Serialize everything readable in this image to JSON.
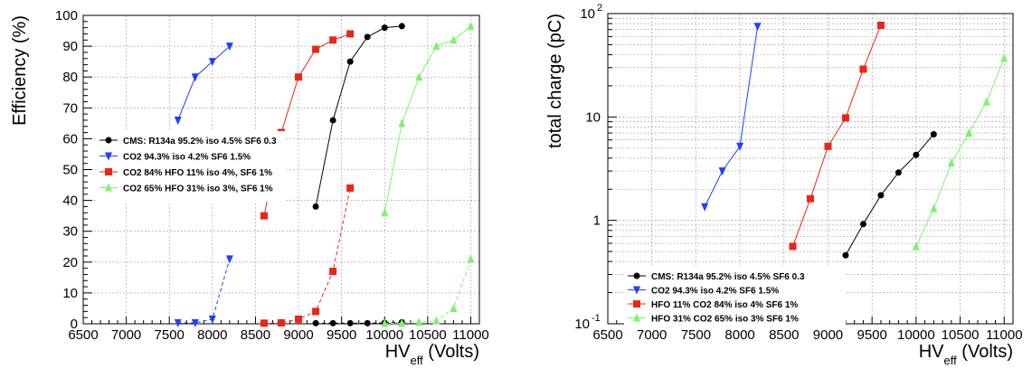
{
  "chart_data": [
    {
      "type": "line",
      "xlabel": "HV",
      "xlabel_sub": "eff",
      "xlabel_unit": "(Volts)",
      "ylabel": "Efficiency (%)",
      "xlim": [
        6500,
        11100
      ],
      "ylim": [
        0,
        100
      ],
      "log_y": false,
      "grid": true,
      "legend_position": "middle-left",
      "x_ticks": [
        6500,
        7000,
        7500,
        8000,
        8500,
        9000,
        9500,
        10000,
        10500,
        11000
      ],
      "y_ticks": [
        0,
        10,
        20,
        30,
        40,
        50,
        60,
        70,
        80,
        90,
        100
      ],
      "x_tick_labels": [
        "6500",
        "7000",
        "7500",
        "8000",
        "8500",
        "9000",
        "9500",
        "10000",
        "10500",
        "11000"
      ],
      "y_tick_labels": [
        "0",
        "10",
        "20",
        "30",
        "40",
        "50",
        "60",
        "70",
        "80",
        "90",
        "100"
      ],
      "series": [
        {
          "name": "CMS: R134a 95.2% iso 4.5% SF6 0.3",
          "color": "#000000",
          "marker": "circle",
          "dashed": false,
          "x": [
            9200,
            9400,
            9600,
            9800,
            10000,
            10200
          ],
          "y": [
            38,
            66,
            85,
            93,
            96,
            96.5
          ]
        },
        {
          "name": "CO2 94.3% iso 4.2% SF6 1.5%",
          "color": "#1f3fff",
          "marker": "triangle-down",
          "dashed": false,
          "x": [
            7600,
            7800,
            8000,
            8200
          ],
          "y": [
            66,
            80,
            85,
            90
          ]
        },
        {
          "name": "CO2 84% HFO 11% iso 4%, SF6 1%",
          "color": "#e8261a",
          "marker": "square",
          "dashed": false,
          "x": [
            8600,
            8800,
            9000,
            9200,
            9400,
            9600
          ],
          "y": [
            35,
            62,
            80,
            89,
            92,
            94
          ]
        },
        {
          "name": "CO2 65% HFO 31% iso 3%, SF6 1%",
          "color": "#80f070",
          "marker": "triangle-up",
          "dashed": false,
          "x": [
            10000,
            10200,
            10400,
            10600,
            10800,
            11000
          ],
          "y": [
            36,
            65,
            80,
            90,
            92,
            96.5
          ]
        },
        {
          "name": "",
          "color": "#000000",
          "marker": "circle",
          "dashed": true,
          "x": [
            9200,
            9400,
            9600,
            9800,
            10000,
            10200
          ],
          "y": [
            0.2,
            0.2,
            0.2,
            0.2,
            0.3,
            0.5
          ]
        },
        {
          "name": "",
          "color": "#1f3fff",
          "marker": "triangle-down",
          "dashed": true,
          "x": [
            7600,
            7800,
            8000,
            8200
          ],
          "y": [
            0.3,
            0.3,
            1.5,
            21
          ]
        },
        {
          "name": "",
          "color": "#e8261a",
          "marker": "square",
          "dashed": true,
          "x": [
            8600,
            8800,
            9000,
            9200,
            9400,
            9600
          ],
          "y": [
            0.2,
            0.3,
            1.5,
            4,
            17,
            44
          ]
        },
        {
          "name": "",
          "color": "#80f070",
          "marker": "triangle-up",
          "dashed": true,
          "x": [
            10000,
            10200,
            10400,
            10600,
            10800,
            11000
          ],
          "y": [
            0.1,
            0.2,
            0.5,
            1,
            5,
            21
          ]
        }
      ]
    },
    {
      "type": "line",
      "xlabel": "HV",
      "xlabel_sub": "eff",
      "xlabel_unit": "(Volts)",
      "ylabel": "total charge (pC)",
      "xlim": [
        6500,
        11100
      ],
      "ylim": [
        0.1,
        100
      ],
      "log_y": true,
      "grid": true,
      "legend_position": "bottom-left",
      "x_ticks": [
        6500,
        7000,
        7500,
        8000,
        8500,
        9000,
        9500,
        10000,
        10500,
        11000
      ],
      "x_tick_labels": [
        "6500",
        "7000",
        "7500",
        "8000",
        "8500",
        "9000",
        "9500",
        "10000",
        "10500",
        "11000"
      ],
      "y_major_ticks": [
        0.1,
        1,
        10,
        100
      ],
      "y_major_labels": [
        {
          "base": "10",
          "exp": "-1"
        },
        {
          "base": "1",
          "exp": ""
        },
        {
          "base": "10",
          "exp": ""
        },
        {
          "base": "10",
          "exp": "2"
        }
      ],
      "series": [
        {
          "name": "CMS: R134a 95.2% iso 4.5% SF6 0.3",
          "color": "#000000",
          "marker": "circle",
          "dashed": false,
          "x": [
            9200,
            9400,
            9600,
            9800,
            10000,
            10200
          ],
          "y": [
            0.46,
            0.92,
            1.75,
            2.9,
            4.3,
            6.8
          ]
        },
        {
          "name": "CO2 94.3% iso 4.2% SF6 1.5%",
          "color": "#1f3fff",
          "marker": "triangle-down",
          "dashed": false,
          "x": [
            7600,
            7800,
            8000,
            8200
          ],
          "y": [
            1.35,
            3.0,
            5.2,
            75
          ]
        },
        {
          "name": "HFO 11% CO2 84% iso 4% SF6 1%",
          "color": "#e8261a",
          "marker": "square",
          "dashed": false,
          "x": [
            8600,
            8800,
            9000,
            9200,
            9400,
            9600
          ],
          "y": [
            0.56,
            1.62,
            5.2,
            9.8,
            29,
            77
          ]
        },
        {
          "name": "HFO 31% CO2 65% iso 3% SF6 1%",
          "color": "#80f070",
          "marker": "triangle-up",
          "dashed": false,
          "x": [
            10000,
            10200,
            10400,
            10600,
            10800,
            11000
          ],
          "y": [
            0.56,
            1.3,
            3.6,
            7.0,
            14,
            37
          ]
        }
      ]
    }
  ]
}
